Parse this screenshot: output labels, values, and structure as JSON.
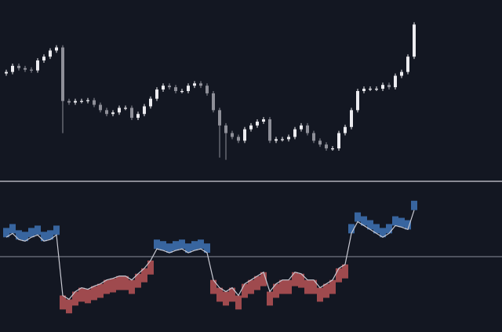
{
  "chart_data": [
    {
      "type": "candlestick",
      "up_color": "#ececf0",
      "down_color": "#8e8f98",
      "ylim": [
        0,
        230
      ],
      "open": [
        138,
        140,
        148,
        145,
        143,
        142,
        155,
        160,
        168,
        172,
        102,
        100,
        102,
        102,
        103,
        97,
        90,
        85,
        87,
        93,
        93,
        80,
        85,
        95,
        105,
        117,
        122,
        120,
        115,
        115,
        122,
        125,
        122,
        112,
        90,
        70,
        60,
        55,
        50,
        65,
        70,
        75,
        78,
        50,
        52,
        52,
        55,
        65,
        70,
        60,
        50,
        45,
        40,
        40,
        60,
        68,
        90,
        115,
        118,
        118,
        118,
        123,
        120,
        135,
        140,
        160
      ],
      "high": [
        143,
        151,
        151,
        148,
        146,
        158,
        163,
        171,
        175,
        175,
        105,
        105,
        105,
        106,
        106,
        100,
        93,
        90,
        96,
        96,
        96,
        88,
        98,
        108,
        120,
        125,
        125,
        123,
        118,
        125,
        128,
        128,
        125,
        115,
        93,
        73,
        63,
        58,
        68,
        73,
        78,
        81,
        81,
        55,
        55,
        58,
        68,
        73,
        73,
        63,
        53,
        48,
        43,
        63,
        71,
        93,
        118,
        121,
        121,
        121,
        126,
        126,
        138,
        143,
        163,
        205
      ],
      "low": [
        135,
        137,
        142,
        140,
        139,
        139,
        152,
        157,
        165,
        60,
        97,
        97,
        99,
        99,
        94,
        87,
        82,
        82,
        84,
        90,
        77,
        77,
        82,
        92,
        102,
        114,
        117,
        112,
        112,
        112,
        119,
        119,
        109,
        87,
        28,
        25,
        52,
        47,
        47,
        62,
        67,
        72,
        47,
        47,
        49,
        49,
        52,
        62,
        57,
        47,
        42,
        37,
        37,
        37,
        57,
        65,
        87,
        112,
        115,
        115,
        115,
        117,
        117,
        132,
        137,
        157
      ],
      "close": [
        140,
        148,
        145,
        143,
        142,
        155,
        160,
        168,
        172,
        102,
        100,
        102,
        102,
        103,
        97,
        90,
        85,
        87,
        93,
        93,
        80,
        85,
        95,
        105,
        117,
        122,
        120,
        115,
        115,
        122,
        125,
        122,
        112,
        90,
        70,
        60,
        55,
        50,
        65,
        70,
        75,
        78,
        50,
        52,
        52,
        55,
        65,
        70,
        60,
        50,
        45,
        40,
        40,
        60,
        68,
        90,
        115,
        118,
        118,
        118,
        123,
        120,
        135,
        140,
        160,
        202
      ]
    },
    {
      "type": "band",
      "ylim": [
        -95,
        93
      ],
      "baseline": 0,
      "line_color": "#c8c9d2",
      "up_color": "#3f73b5",
      "down_color": "#b85456",
      "values": [
        25,
        30,
        22,
        20,
        25,
        28,
        20,
        22,
        28,
        -50,
        -55,
        -45,
        -40,
        -42,
        -38,
        -35,
        -30,
        -28,
        -25,
        -25,
        -30,
        -22,
        -15,
        -5,
        10,
        8,
        5,
        8,
        10,
        5,
        8,
        10,
        5,
        -30,
        -40,
        -45,
        -40,
        -50,
        -35,
        -30,
        -25,
        -20,
        -45,
        -35,
        -30,
        -30,
        -20,
        -22,
        -30,
        -30,
        -40,
        -35,
        -30,
        -15,
        -10,
        30,
        45,
        40,
        35,
        30,
        25,
        30,
        40,
        38,
        35,
        60
      ],
      "band_edge": [
        37,
        42,
        34,
        32,
        37,
        40,
        32,
        34,
        40,
        -68,
        -73,
        -63,
        -58,
        -60,
        -56,
        -53,
        -48,
        -46,
        -43,
        -43,
        -48,
        -40,
        -33,
        -23,
        22,
        20,
        17,
        20,
        22,
        17,
        20,
        22,
        17,
        -48,
        -58,
        -63,
        -58,
        -68,
        -53,
        -48,
        -43,
        -38,
        -63,
        -53,
        -48,
        -48,
        -38,
        -40,
        -48,
        -48,
        -58,
        -53,
        -48,
        -33,
        -28,
        42,
        57,
        52,
        47,
        42,
        37,
        42,
        52,
        50,
        47,
        72
      ]
    }
  ]
}
